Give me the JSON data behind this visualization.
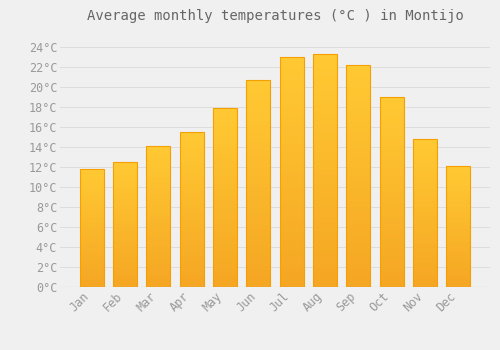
{
  "title": "Average monthly temperatures (°C ) in Montijo",
  "months": [
    "Jan",
    "Feb",
    "Mar",
    "Apr",
    "May",
    "Jun",
    "Jul",
    "Aug",
    "Sep",
    "Oct",
    "Nov",
    "Dec"
  ],
  "temperatures": [
    11.8,
    12.5,
    14.1,
    15.5,
    17.9,
    20.7,
    23.0,
    23.3,
    22.2,
    19.0,
    14.8,
    12.1
  ],
  "bar_color_top": "#FFC933",
  "bar_color_bottom": "#F5A623",
  "background_color": "#F0F0F0",
  "grid_color": "#DDDDDD",
  "tick_label_color": "#999999",
  "title_color": "#666666",
  "ylim": [
    0,
    25.5
  ],
  "yticks": [
    0,
    2,
    4,
    6,
    8,
    10,
    12,
    14,
    16,
    18,
    20,
    22,
    24
  ],
  "title_fontsize": 10,
  "tick_fontsize": 8.5
}
